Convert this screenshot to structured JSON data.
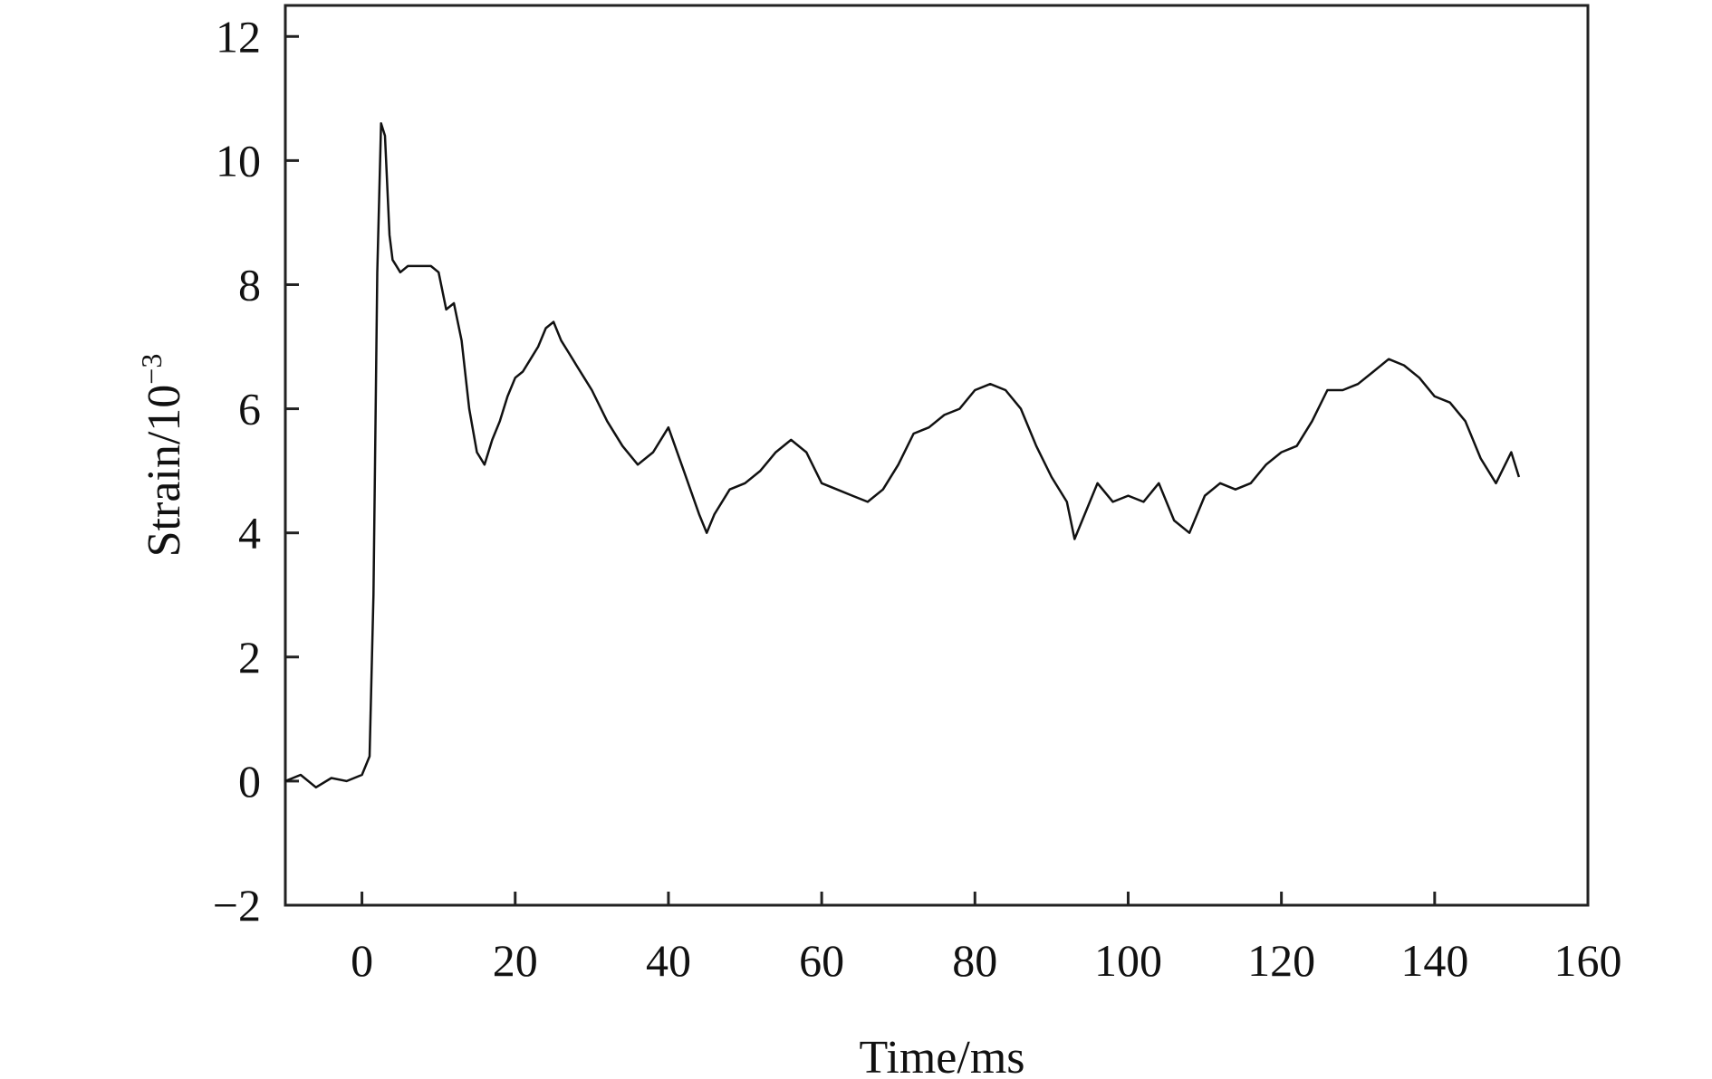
{
  "chart_data": {
    "type": "line",
    "xlabel": "Time/ms",
    "ylabel_base": "Strain/10",
    "ylabel_exponent": "−3",
    "xlim": [
      -10,
      160
    ],
    "ylim": [
      -2,
      12.5
    ],
    "xticks": [
      0,
      20,
      40,
      60,
      80,
      100,
      120,
      140,
      160
    ],
    "xtick_labels": [
      "0",
      "20",
      "40",
      "60",
      "80",
      "100",
      "120",
      "140",
      "160"
    ],
    "yticks": [
      -2,
      0,
      2,
      4,
      6,
      8,
      10,
      12
    ],
    "ytick_labels": [
      "−2",
      "0",
      "2",
      "4",
      "6",
      "8",
      "10",
      "12"
    ],
    "grid": false,
    "legend": "none",
    "series": [
      {
        "color": "#111111",
        "x": [
          -10,
          -8,
          -6,
          -4,
          -2,
          0,
          1,
          1.5,
          2,
          2.5,
          3,
          3.3,
          3.6,
          4,
          4.5,
          5,
          6,
          7,
          8,
          9,
          10,
          11,
          12,
          13,
          14,
          15,
          16,
          17,
          18,
          19,
          20,
          21,
          22,
          23,
          24,
          25,
          26,
          27,
          28,
          29,
          30,
          32,
          34,
          36,
          38,
          40,
          42,
          44,
          45,
          46,
          48,
          50,
          52,
          54,
          56,
          58,
          60,
          62,
          64,
          66,
          68,
          70,
          72,
          74,
          76,
          78,
          80,
          82,
          84,
          86,
          88,
          90,
          92,
          93,
          94,
          96,
          98,
          100,
          102,
          104,
          106,
          108,
          110,
          112,
          114,
          116,
          118,
          120,
          122,
          124,
          126,
          128,
          130,
          132,
          134,
          136,
          138,
          140,
          142,
          144,
          146,
          148,
          150,
          151
        ],
        "y": [
          0.0,
          0.1,
          -0.1,
          0.05,
          0.0,
          0.1,
          0.4,
          3.0,
          8.2,
          10.6,
          10.4,
          9.6,
          8.8,
          8.4,
          8.3,
          8.2,
          8.3,
          8.3,
          8.3,
          8.3,
          8.2,
          7.6,
          7.7,
          7.1,
          6.0,
          5.3,
          5.1,
          5.5,
          5.8,
          6.2,
          6.5,
          6.6,
          6.8,
          7.0,
          7.3,
          7.4,
          7.1,
          6.9,
          6.7,
          6.5,
          6.3,
          5.8,
          5.4,
          5.1,
          5.3,
          5.7,
          5.0,
          4.3,
          4.0,
          4.3,
          4.7,
          4.8,
          5.0,
          5.3,
          5.5,
          5.3,
          4.8,
          4.7,
          4.6,
          4.5,
          4.7,
          5.1,
          5.6,
          5.7,
          5.9,
          6.0,
          6.3,
          6.4,
          6.3,
          6.0,
          5.4,
          4.9,
          4.5,
          3.9,
          4.2,
          4.8,
          4.5,
          4.6,
          4.5,
          4.8,
          4.2,
          4.0,
          4.6,
          4.8,
          4.7,
          4.8,
          5.1,
          5.3,
          5.4,
          5.8,
          6.3,
          6.3,
          6.4,
          6.6,
          6.8,
          6.7,
          6.5,
          6.2,
          6.1,
          5.8,
          5.2,
          4.8,
          5.3,
          4.9
        ]
      }
    ]
  }
}
